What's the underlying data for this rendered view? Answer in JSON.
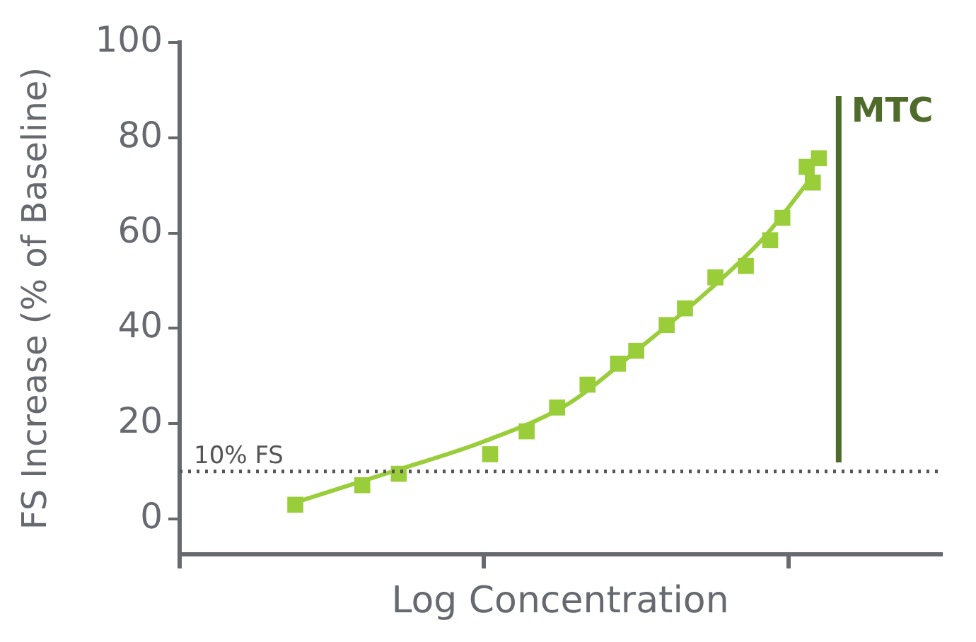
{
  "chart_data": {
    "type": "scatter",
    "xlabel": "Log Concentration",
    "ylabel": "FS Increase (% of Baseline)",
    "categories": [
      null,
      null,
      null,
      null,
      null,
      null,
      null,
      null,
      null,
      null,
      null,
      null,
      null,
      null,
      null,
      null,
      null,
      null,
      null,
      null,
      null,
      null,
      null,
      null,
      null,
      null,
      null,
      null,
      null,
      null,
      null,
      null,
      null,
      null,
      null,
      null,
      null,
      null,
      null,
      null,
      null,
      null,
      null,
      null,
      null,
      null,
      null,
      null,
      null,
      null,
      null,
      null,
      null,
      null,
      null,
      null,
      null,
      null,
      null,
      null,
      null,
      null,
      null,
      null,
      null,
      null,
      null,
      null,
      null,
      null,
      null,
      null,
      null,
      null,
      null,
      null,
      null,
      null,
      null,
      null,
      null,
      null,
      null,
      null,
      null,
      null,
      null,
      null,
      null,
      null,
      null,
      null,
      null,
      null,
      null,
      null,
      null,
      null,
      null,
      null,
      null,
      null,
      null,
      null,
      null,
      null,
      null,
      null,
      null,
      null,
      null,
      null,
      null,
      null,
      null,
      null,
      null,
      null,
      null,
      null,
      null,
      null,
      null,
      null,
      null,
      null
    ],
    "ylim": [
      -7.4,
      100
    ],
    "yticks": [
      0,
      20,
      40,
      60,
      80,
      100
    ],
    "tick_labels": "y",
    "grid": false,
    "legend": false,
    "marker": "square",
    "series": [
      {
        "type": "scatter",
        "color": "#9acd3a",
        "values": [
          null,
          null,
          null,
          null,
          null,
          null,
          null,
          null,
          null,
          null,
          null,
          null,
          null,
          null,
          null,
          null,
          null,
          null,
          null,
          3,
          null,
          null,
          null,
          null,
          null,
          null,
          null,
          null,
          null,
          null,
          7.1,
          null,
          null,
          null,
          null,
          null,
          9.5,
          null,
          null,
          null,
          null,
          null,
          null,
          null,
          null,
          null,
          null,
          null,
          null,
          null,
          null,
          13.6,
          null,
          null,
          null,
          null,
          null,
          18.4,
          null,
          null,
          null,
          null,
          23.4,
          null,
          null,
          null,
          null,
          28.2,
          null,
          null,
          null,
          null,
          32.6,
          null,
          null,
          35.3,
          null,
          null,
          null,
          null,
          40.7,
          null,
          null,
          44.2,
          null,
          null,
          null,
          null,
          50.7,
          null,
          null,
          null,
          null,
          53.1,
          null,
          null,
          null,
          58.5,
          null,
          63.2,
          null,
          null,
          null,
          73.9,
          70.6,
          75.7,
          null,
          null,
          null,
          null,
          null,
          null,
          null,
          null,
          null,
          null,
          null,
          null,
          null,
          null,
          null,
          null,
          null,
          null,
          null,
          null
        ]
      },
      {
        "type": "line",
        "color": "#9acd3a",
        "marker": "none",
        "values": [
          null,
          null,
          null,
          null,
          null,
          null,
          null,
          null,
          null,
          null,
          null,
          null,
          null,
          null,
          null,
          null,
          null,
          null,
          null,
          3.5,
          null,
          null,
          null,
          null,
          null,
          null,
          null,
          null,
          null,
          null,
          null,
          null,
          null,
          null,
          null,
          null,
          10.4,
          null,
          null,
          null,
          null,
          null,
          null,
          null,
          null,
          null,
          null,
          null,
          null,
          null,
          16.3,
          null,
          null,
          null,
          null,
          null,
          null,
          null,
          null,
          null,
          null,
          null,
          null,
          null,
          24.3,
          null,
          null,
          null,
          null,
          null,
          null,
          null,
          null,
          null,
          null,
          35.3,
          null,
          null,
          null,
          null,
          null,
          null,
          null,
          null,
          null,
          null,
          null,
          48.1,
          null,
          null,
          null,
          null,
          null,
          null,
          null,
          null,
          59.1,
          null,
          null,
          null,
          null,
          null,
          null,
          70.3,
          null,
          null,
          null,
          null,
          null,
          null,
          null,
          null,
          null,
          null,
          null,
          null,
          null,
          null,
          null,
          null,
          null,
          null,
          null,
          null,
          null,
          null
        ]
      }
    ],
    "ref_lines": [
      {
        "axis": "y",
        "value": 10,
        "label": "10% FS",
        "color": "#555555",
        "line_style": "dotted"
      },
      {
        "axis": "x",
        "label": "MTC",
        "color": "#4e6b2b",
        "line_style": "solid"
      }
    ]
  }
}
